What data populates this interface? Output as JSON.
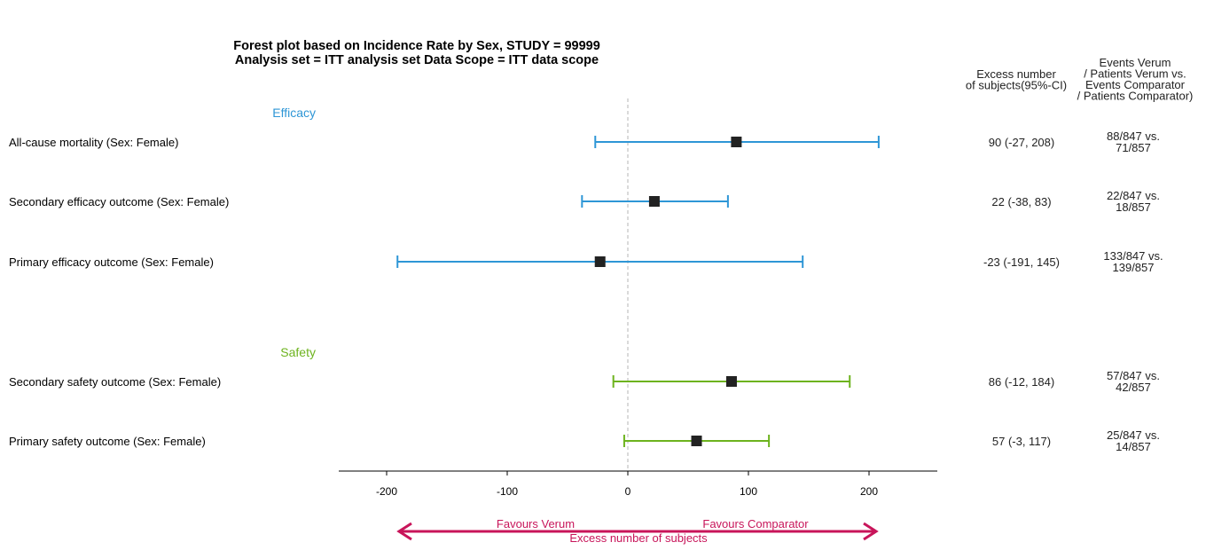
{
  "chart_data": {
    "type": "forest",
    "title": [
      "Forest plot based on Incidence Rate by Sex, STUDY = 99999",
      "Analysis set = ITT analysis set Data Scope = ITT data scope"
    ],
    "column_headers": {
      "excess": [
        "Excess number",
        "of subjects(95%-CI)"
      ],
      "events": [
        "Events Verum",
        "/ Patients Verum vs.",
        "Events Comparator",
        "/ Patients Comparator)"
      ]
    },
    "xlim": [
      -240,
      255
    ],
    "xticks": [
      -200,
      -100,
      0,
      100,
      200
    ],
    "reference_line": 0,
    "xlabel": "Excess number of subjects",
    "favours_left": "Favours Verum",
    "favours_right": "Favours Comparator",
    "groups": [
      {
        "name": "Efficacy",
        "color": "#2e96d6",
        "rows": [
          {
            "label": "All-cause mortality (Sex: Female)",
            "estimate": 90,
            "lower": -27,
            "upper": 208,
            "ci_text": "90 (-27, 208)",
            "events_line1": "88/847 vs.",
            "events_line2": "71/857"
          },
          {
            "label": "Secondary efficacy outcome (Sex: Female)",
            "estimate": 22,
            "lower": -38,
            "upper": 83,
            "ci_text": "22 (-38, 83)",
            "events_line1": "22/847 vs.",
            "events_line2": "18/857"
          },
          {
            "label": "Primary efficacy outcome (Sex: Female)",
            "estimate": -23,
            "lower": -191,
            "upper": 145,
            "ci_text": "-23 (-191, 145)",
            "events_line1": "133/847 vs.",
            "events_line2": "139/857"
          }
        ]
      },
      {
        "name": "Safety",
        "color": "#6db31e",
        "rows": [
          {
            "label": "Secondary safety outcome (Sex: Female)",
            "estimate": 86,
            "lower": -12,
            "upper": 184,
            "ci_text": "86 (-12, 184)",
            "events_line1": "57/847 vs.",
            "events_line2": "42/857"
          },
          {
            "label": "Primary safety outcome (Sex: Female)",
            "estimate": 57,
            "lower": -3,
            "upper": 117,
            "ci_text": "57 (-3, 117)",
            "events_line1": "25/847 vs.",
            "events_line2": "14/857"
          }
        ]
      }
    ],
    "colors": {
      "marker": "#222222",
      "reference": "#b5b5b5",
      "favours": "#c8155a"
    }
  }
}
